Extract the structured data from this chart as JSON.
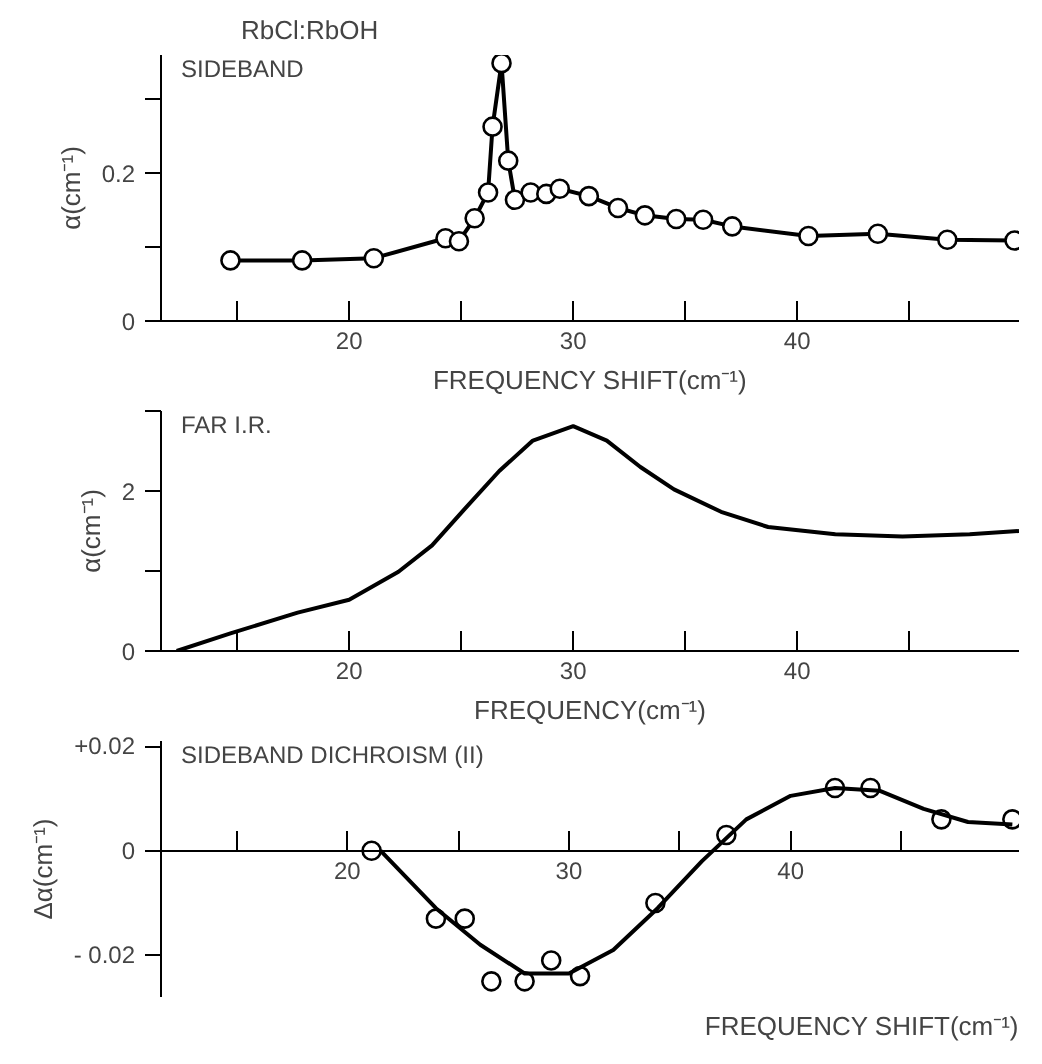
{
  "chart_data": [
    {
      "type": "line",
      "title": "RbCl:RbOH",
      "annotations": [
        "SIDEBAND"
      ],
      "xlabel": "FREQUENCY SHIFT(cm⁻¹)",
      "ylabel": "α(cm⁻¹)",
      "marker": "circle",
      "grid": false,
      "xlim": [
        11.6,
        49.9
      ],
      "ylim": [
        0,
        0.36
      ],
      "xticks": [
        {
          "value": 15,
          "label": null
        },
        20,
        {
          "value": 25,
          "label": null
        },
        30,
        {
          "value": 35,
          "label": null
        },
        40,
        {
          "value": 45,
          "label": null
        }
      ],
      "yticks": [
        0,
        {
          "value": 0.1,
          "label": null
        },
        0.2,
        {
          "value": 0.3,
          "label": null
        }
      ],
      "series": [
        {
          "color": "#000000",
          "x": [
            14.7,
            17.9,
            21.1,
            24.3,
            24.9,
            25.6,
            26.2,
            26.4,
            26.8,
            27.1,
            27.4,
            28.1,
            28.8,
            29.4,
            30.7,
            32.0,
            33.2,
            34.6,
            35.8,
            37.1,
            40.5,
            43.6,
            46.7,
            49.7
          ],
          "values": [
            0.082,
            0.082,
            0.085,
            0.112,
            0.108,
            0.139,
            0.174,
            0.263,
            0.349,
            0.217,
            0.164,
            0.174,
            0.172,
            0.179,
            0.169,
            0.153,
            0.143,
            0.138,
            0.137,
            0.128,
            0.115,
            0.118,
            0.11,
            0.109
          ]
        }
      ]
    },
    {
      "type": "line",
      "annotations": [
        "FAR I.R."
      ],
      "xlabel": "FREQUENCY(cm⁻¹)",
      "ylabel": "α(cm⁻¹)",
      "grid": false,
      "xlim": [
        11.6,
        49.9
      ],
      "ylim": [
        0,
        3
      ],
      "xticks": [
        {
          "value": 15,
          "label": null
        },
        20,
        {
          "value": 25,
          "label": null
        },
        30,
        {
          "value": 35,
          "label": null
        },
        40,
        {
          "value": 45,
          "label": null
        }
      ],
      "yticks": [
        0,
        {
          "value": 1,
          "label": null
        },
        2,
        {
          "value": 3,
          "label": null
        }
      ],
      "series": [
        {
          "color": "#000000",
          "x": [
            12.3,
            14.7,
            17.7,
            20,
            22.2,
            23.7,
            25.2,
            26.7,
            28.2,
            30,
            31.5,
            33,
            34.5,
            36.6,
            38.7,
            41.7,
            44.7,
            47.7,
            49.9
          ],
          "values": [
            0,
            0.22,
            0.48,
            0.64,
            0.99,
            1.32,
            1.79,
            2.25,
            2.63,
            2.81,
            2.63,
            2.3,
            2.02,
            1.74,
            1.55,
            1.46,
            1.43,
            1.46,
            1.5
          ]
        }
      ]
    },
    {
      "type": "scatter",
      "annotations": [
        "SIDEBAND DICHROISM (II)"
      ],
      "xlabel": "FREQUENCY SHIFT(cm⁻¹)",
      "ylabel": "Δα(cm⁻¹)",
      "marker": "circle",
      "grid": false,
      "xlim": [
        11.6,
        50.3
      ],
      "ylim": [
        -0.028,
        0.021
      ],
      "xticks": [
        {
          "value": 15,
          "label": null
        },
        20,
        {
          "value": 25,
          "label": null
        },
        30,
        {
          "value": 35,
          "label": null
        },
        40,
        {
          "value": 45,
          "label": null
        }
      ],
      "yticks": [
        {
          "value": -0.02,
          "label": "- 0.02"
        },
        0,
        {
          "value": 0.02,
          "label": "+0.02"
        }
      ],
      "series": [
        {
          "color": "#000000",
          "x": [
            21.1,
            24.0,
            25.3,
            26.5,
            28.0,
            29.2,
            30.5,
            33.9,
            37.1,
            42.0,
            43.6,
            46.8,
            50.0
          ],
          "values": [
            0.0,
            -0.013,
            -0.013,
            -0.025,
            -0.025,
            -0.021,
            -0.024,
            -0.01,
            0.003,
            0.012,
            0.012,
            0.006,
            0.006
          ]
        },
        {
          "type": "line",
          "marker": "none",
          "color": "#000000",
          "x": [
            21.5,
            24,
            26,
            28,
            30,
            32,
            34,
            36,
            38,
            40,
            42,
            44,
            46,
            48,
            50
          ],
          "values": [
            0,
            -0.011,
            -0.018,
            -0.0235,
            -0.0235,
            -0.019,
            -0.011,
            -0.002,
            0.006,
            0.0105,
            0.012,
            0.0115,
            0.008,
            0.0055,
            0.005
          ]
        }
      ]
    }
  ]
}
